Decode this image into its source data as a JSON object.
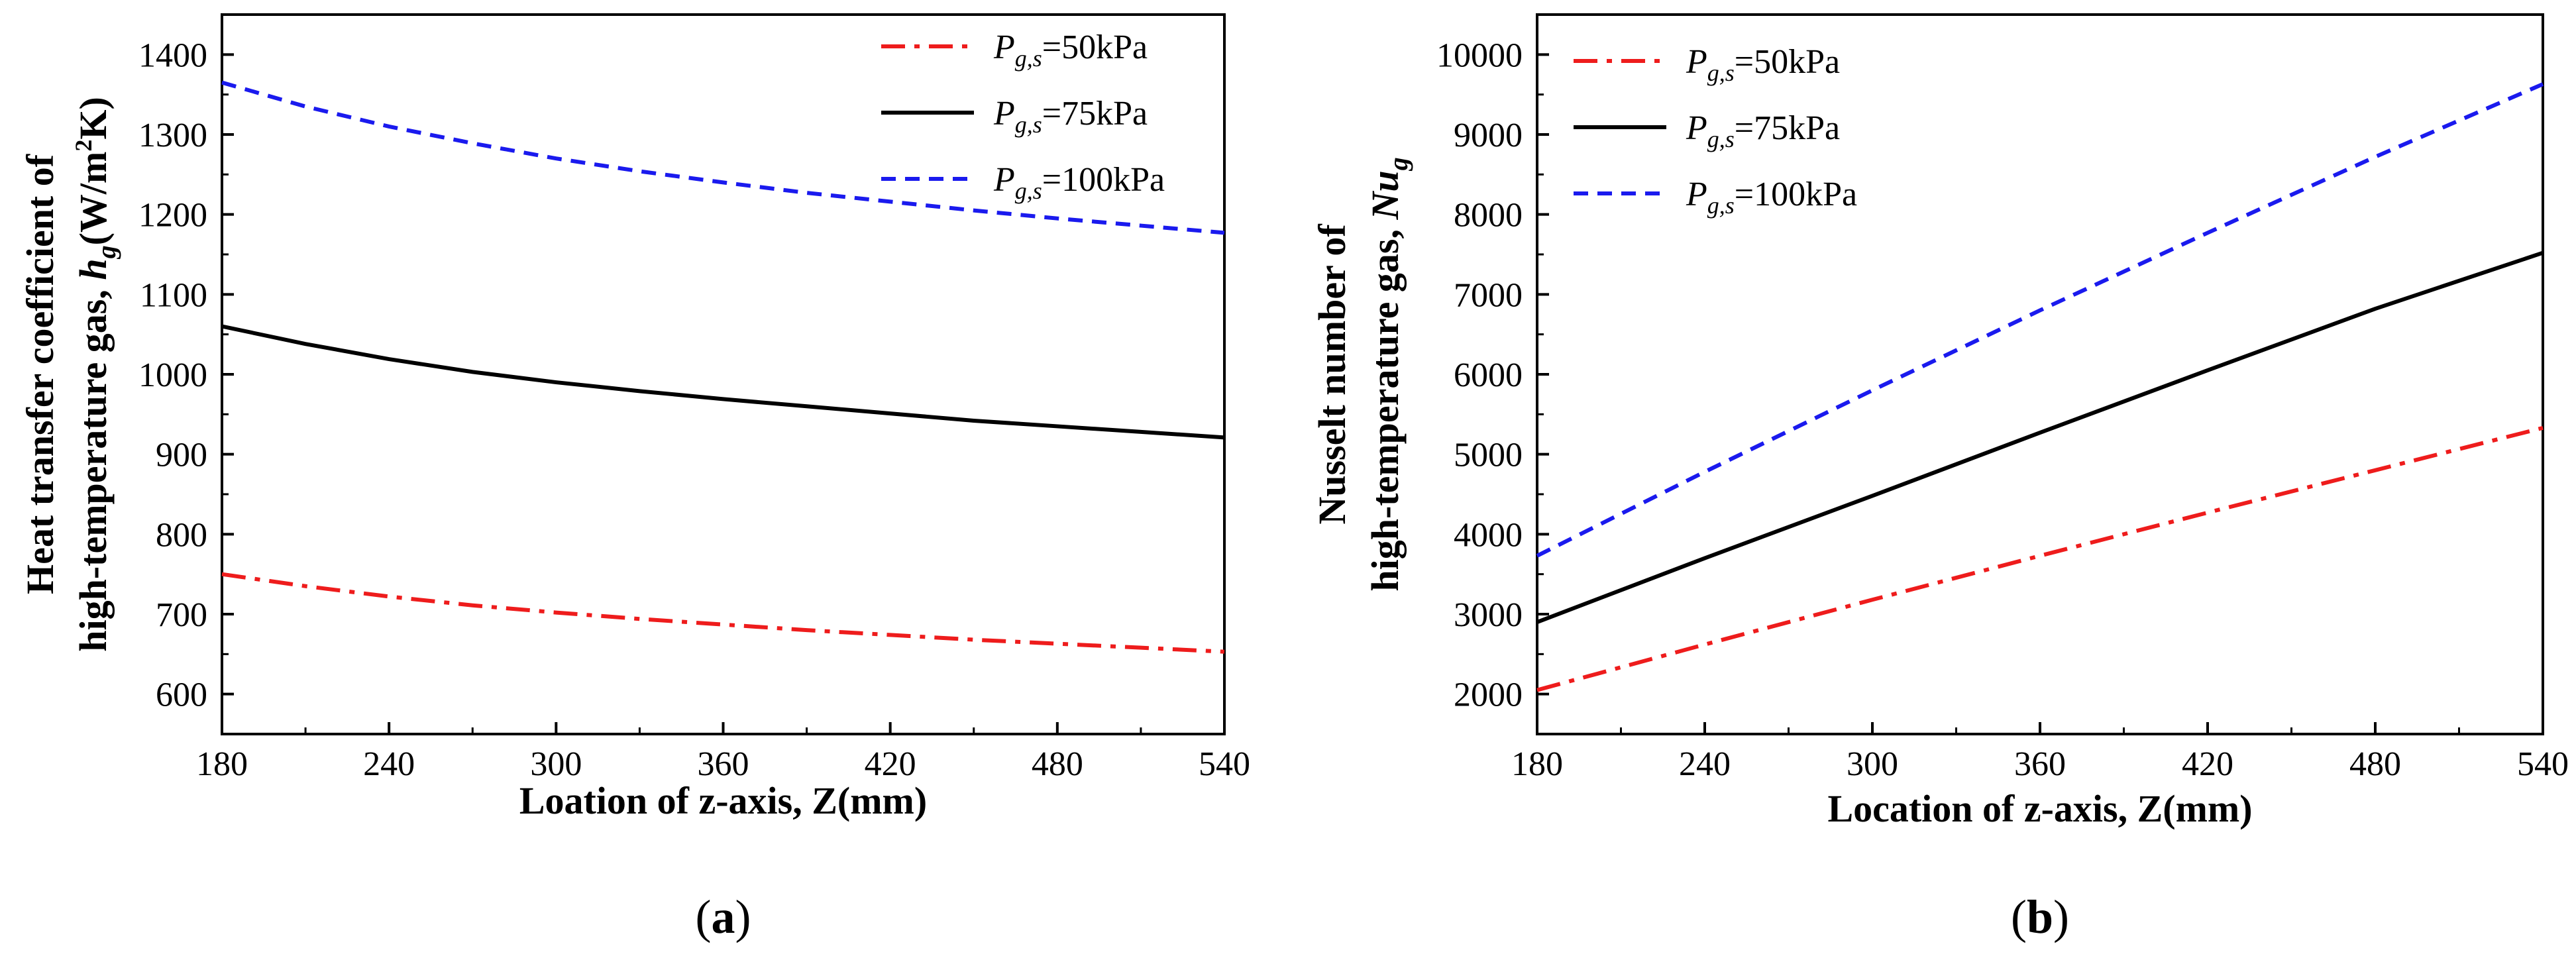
{
  "chart_data": [
    {
      "panel": "a",
      "panel_label_parts": [
        "(",
        "a",
        ")"
      ],
      "type": "line",
      "xlabel": "Loation of z-axis, Z(mm)",
      "ylabel_line1": "Heat transfer coefficient of",
      "ylabel_line2_parts": [
        "high-temperature gas, ",
        "h",
        "g",
        "(W/m",
        "2",
        "K)"
      ],
      "xlim": [
        180,
        540
      ],
      "ylim": [
        550,
        1450
      ],
      "xticks": [
        180,
        240,
        300,
        360,
        420,
        480,
        540
      ],
      "yticks": [
        600,
        700,
        800,
        900,
        1000,
        1100,
        1200,
        1300,
        1400
      ],
      "legend_position": "top-right",
      "series": [
        {
          "name": "Pg,s=50kPa",
          "label_parts": [
            "P",
            "g,s",
            "=50kPa"
          ],
          "color": "#ee1c1c",
          "style": "dashdot",
          "x": [
            180,
            210,
            240,
            270,
            300,
            330,
            360,
            390,
            420,
            450,
            480,
            510,
            540
          ],
          "y": [
            750,
            735,
            722,
            711,
            702,
            694,
            687,
            680,
            674,
            668,
            663,
            658,
            653
          ]
        },
        {
          "name": "Pg,s=75kPa",
          "label_parts": [
            "P",
            "g,s",
            "=75kPa"
          ],
          "color": "#000000",
          "style": "solid",
          "x": [
            180,
            210,
            240,
            270,
            300,
            330,
            360,
            390,
            420,
            450,
            480,
            510,
            540
          ],
          "y": [
            1060,
            1038,
            1019,
            1003,
            990,
            979,
            969,
            960,
            951,
            942,
            935,
            928,
            921
          ]
        },
        {
          "name": "Pg,s=100kPa",
          "label_parts": [
            "P",
            "g,s",
            "=100kPa"
          ],
          "color": "#1a1aee",
          "style": "dashed",
          "x": [
            180,
            210,
            240,
            270,
            300,
            330,
            360,
            390,
            420,
            450,
            480,
            510,
            540
          ],
          "y": [
            1365,
            1335,
            1310,
            1289,
            1270,
            1254,
            1240,
            1227,
            1216,
            1205,
            1195,
            1186,
            1177
          ]
        }
      ]
    },
    {
      "panel": "b",
      "panel_label_parts": [
        "(",
        "b",
        ")"
      ],
      "type": "line",
      "xlabel": "Location of z-axis, Z(mm)",
      "ylabel_line1": "Nusselt number of",
      "ylabel_line2_parts": [
        "high-temperature gas, ",
        "Nu",
        "g"
      ],
      "xlim": [
        180,
        540
      ],
      "ylim": [
        1500,
        10500
      ],
      "xticks": [
        180,
        240,
        300,
        360,
        420,
        480,
        540
      ],
      "yticks": [
        2000,
        3000,
        4000,
        5000,
        6000,
        7000,
        8000,
        9000,
        10000
      ],
      "legend_position": "top-left",
      "series": [
        {
          "name": "Pg,s=50kPa",
          "label_parts": [
            "P",
            "g,s",
            "=50kPa"
          ],
          "color": "#ee1c1c",
          "style": "dashdot",
          "x": [
            180,
            240,
            300,
            360,
            420,
            480,
            540
          ],
          "y": [
            2050,
            2620,
            3180,
            3730,
            4270,
            4800,
            5330
          ]
        },
        {
          "name": "Pg,s=75kPa",
          "label_parts": [
            "P",
            "g,s",
            "=75kPa"
          ],
          "color": "#000000",
          "style": "solid",
          "x": [
            180,
            240,
            300,
            360,
            420,
            480,
            540
          ],
          "y": [
            2900,
            3700,
            4480,
            5270,
            6050,
            6820,
            7520
          ]
        },
        {
          "name": "Pg,s=100kPa",
          "label_parts": [
            "P",
            "g,s",
            "=100kPa"
          ],
          "color": "#1a1aee",
          "style": "dashed",
          "x": [
            180,
            240,
            300,
            360,
            420,
            480,
            540
          ],
          "y": [
            3730,
            4780,
            5800,
            6800,
            7770,
            8720,
            9630
          ]
        }
      ]
    }
  ]
}
